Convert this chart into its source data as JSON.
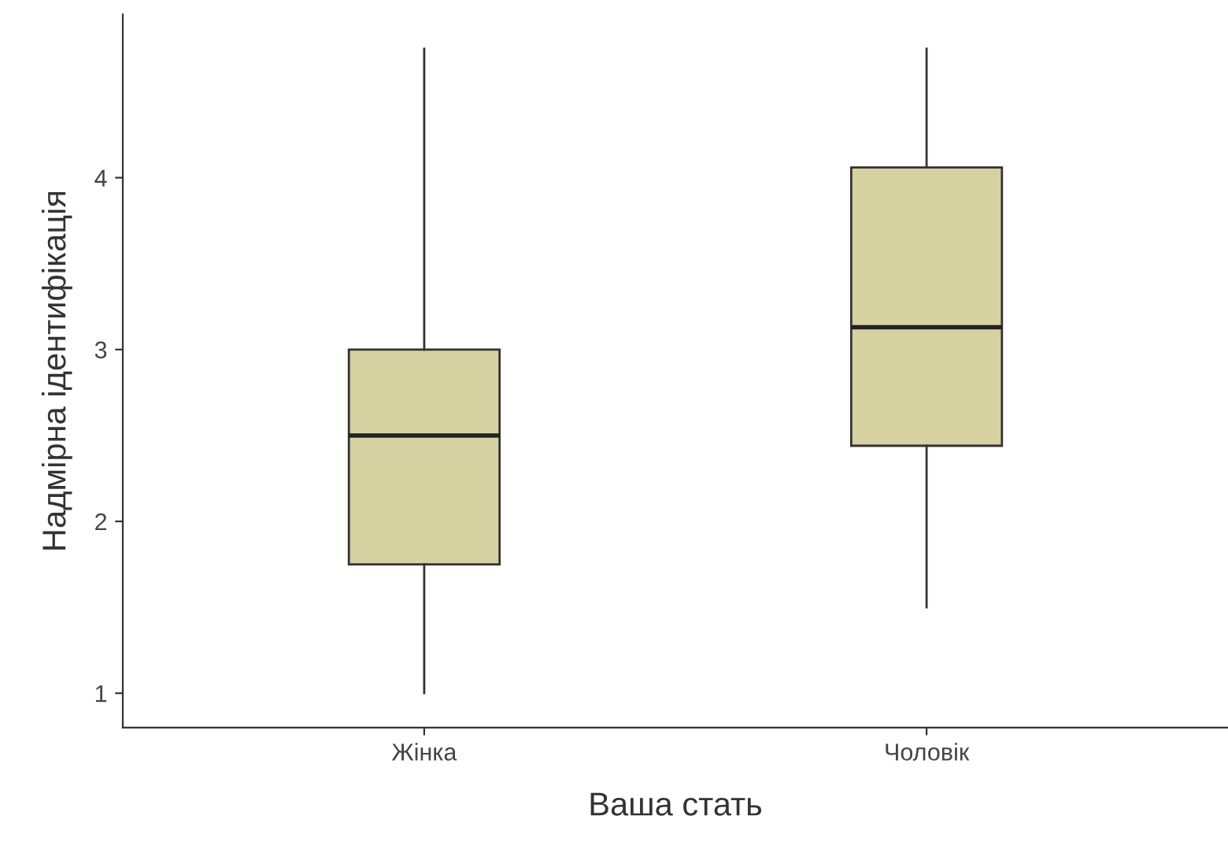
{
  "chart_data": {
    "type": "box",
    "xlabel": "Ваша стать",
    "ylabel": "Надмірна ідентифікація",
    "categories": [
      "Жінка",
      "Чоловік"
    ],
    "boxes": [
      {
        "low": 1,
        "q1": 1.75,
        "median": 2.5,
        "q3": 3,
        "high": 4.75
      },
      {
        "low": 1.5,
        "q1": 2.44,
        "median": 3.13,
        "q3": 4.06,
        "high": 4.75
      }
    ],
    "color": "#d6d1a0",
    "ylim": [
      0.8,
      4.95
    ],
    "yticks": [
      1,
      2,
      3,
      4
    ],
    "grid": false
  }
}
